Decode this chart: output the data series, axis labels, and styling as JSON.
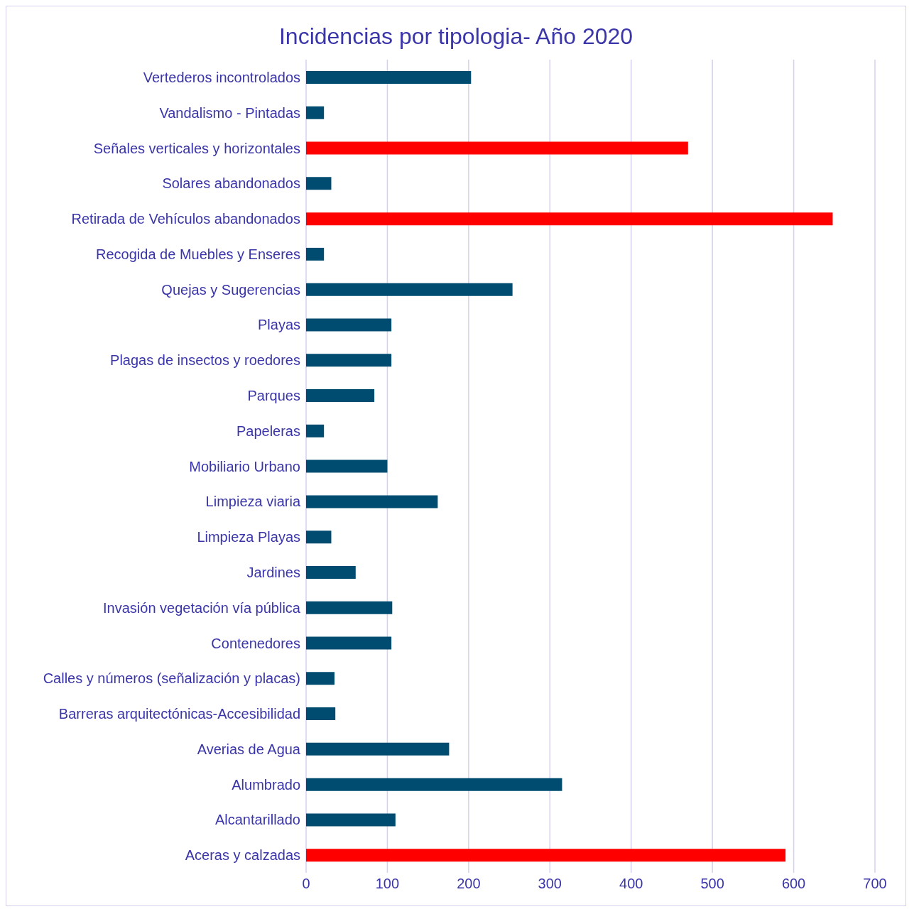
{
  "chart_data": {
    "type": "bar",
    "orientation": "horizontal",
    "title": "Incidencias por tipologia- Año 2020",
    "categories": [
      "Vertederos incontrolados",
      "Vandalismo - Pintadas",
      "Señales verticales y horizontales",
      "Solares abandonados",
      "Retirada de Vehículos abandonados",
      "Recogida de Muebles y Enseres",
      "Quejas y Sugerencias",
      "Playas",
      "Plagas de insectos y roedores",
      "Parques ",
      "Papeleras",
      "Mobiliario Urbano",
      "Limpieza viaria",
      "Limpieza Playas",
      "Jardines ",
      "Invasión vegetación vía pública",
      "Contenedores ",
      "Calles y números (señalización y placas)",
      "Barreras arquitectónicas-Accesibilidad",
      "Averias de Agua",
      "Alumbrado",
      "Alcantarillado",
      "Aceras y calzadas"
    ],
    "values": [
      203,
      22,
      470,
      31,
      648,
      22,
      254,
      105,
      105,
      84,
      22,
      100,
      162,
      31,
      61,
      106,
      105,
      35,
      36,
      176,
      315,
      110,
      590
    ],
    "colors": [
      "#004c70",
      "#004c70",
      "#ff0000",
      "#004c70",
      "#ff0000",
      "#004c70",
      "#004c70",
      "#004c70",
      "#004c70",
      "#004c70",
      "#004c70",
      "#004c70",
      "#004c70",
      "#004c70",
      "#004c70",
      "#004c70",
      "#004c70",
      "#004c70",
      "#004c70",
      "#004c70",
      "#004c70",
      "#004c70",
      "#ff0000"
    ],
    "xlim": [
      0,
      700
    ],
    "xticks": [
      0,
      100,
      200,
      300,
      400,
      500,
      600,
      700
    ],
    "grid": "x"
  }
}
